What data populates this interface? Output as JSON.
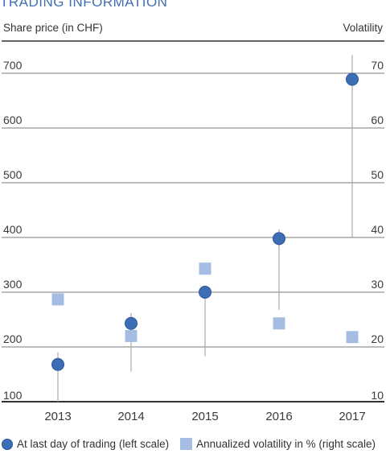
{
  "chart_data": {
    "type": "scatter",
    "title": "TRADING INFORMATION",
    "ylabel": "Share price (in CHF)",
    "y2label": "Volatility",
    "categories": [
      "2013",
      "2014",
      "2015",
      "2016",
      "2017"
    ],
    "ylim": [
      100,
      700
    ],
    "y2lim": [
      10,
      70
    ],
    "yticks": [
      "100",
      "200",
      "300",
      "400",
      "500",
      "600",
      "700"
    ],
    "y2ticks": [
      "10",
      "20",
      "30",
      "40",
      "50",
      "60",
      "70"
    ],
    "series": [
      {
        "name": "At last day of trading (left scale)",
        "axis": "left",
        "marker": "circle",
        "color": "#3d6db5",
        "values": [
          168,
          243,
          300,
          398,
          689
        ],
        "range_low": [
          100,
          155,
          183,
          268,
          400
        ],
        "range_high": [
          190,
          262,
          300,
          415,
          733
        ]
      },
      {
        "name": "Annualized volatility in % (right scale)",
        "axis": "right",
        "marker": "square",
        "color": "#a6bde3",
        "values": [
          28.7,
          22.0,
          34.3,
          24.3,
          21.8
        ]
      }
    ],
    "grid": true,
    "legend": "bottom"
  }
}
